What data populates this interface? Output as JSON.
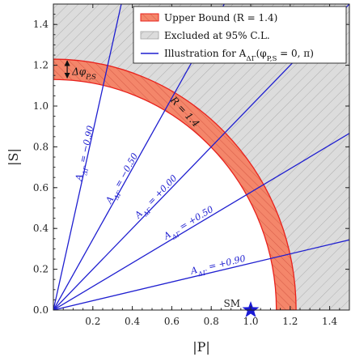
{
  "chart_data": {
    "type": "line",
    "title": "",
    "xlabel": "|P|",
    "ylabel": "|S|",
    "xlim": [
      0,
      1.5
    ],
    "ylim": [
      0,
      1.5
    ],
    "xticks": [
      0.2,
      0.4,
      0.6,
      0.8,
      1.0,
      1.2,
      1.4
    ],
    "xtick_labels": [
      "0.2",
      "0.4",
      "0.6",
      "0.8",
      "1.0",
      "1.2",
      "1.4"
    ],
    "yticks": [
      0.0,
      0.2,
      0.4,
      0.6,
      0.8,
      1.0,
      1.2,
      1.4
    ],
    "ytick_labels": [
      "0.0",
      "0.2",
      "0.4",
      "0.6",
      "0.8",
      "1.0",
      "1.2",
      "1.4"
    ],
    "grid": false,
    "legend_position": "top-right",
    "legend": [
      {
        "label": "Upper Bound (R = 1.4)",
        "kind": "band",
        "color": "#f4866a"
      },
      {
        "label": "Excluded at 95% C.L.",
        "kind": "hatch",
        "color": "#d9d9d9"
      },
      {
        "label": "Illustration for A_ΔΓ(φ_P,S = 0, π)",
        "kind": "line",
        "color": "#1f1fd0"
      }
    ],
    "bound_band": {
      "r_inner": 1.13,
      "r_outer": 1.23,
      "fill": "#f4866a",
      "edge": "#e8211c"
    },
    "excluded_region": {
      "r_min": 1.23,
      "fill": "#d9d9d9"
    },
    "lines": [
      {
        "a": -0.9,
        "label": "A_ΔΓ = −0.90"
      },
      {
        "a": -0.5,
        "label": "A_ΔΓ = −0.50"
      },
      {
        "a": 0.0,
        "label": "A_ΔΓ = +0.00"
      },
      {
        "a": 0.5,
        "label": "A_ΔΓ = +0.50"
      },
      {
        "a": 0.9,
        "label": "A_ΔΓ = +0.90"
      }
    ],
    "line_color": "#1f1fd0",
    "sm_point": {
      "x": 1.0,
      "y": 0.0,
      "label": "SM",
      "color": "#1a1ad6"
    },
    "annotations": {
      "band_label": "R = 1.4",
      "delta_label": "Δφ_P,S"
    }
  }
}
